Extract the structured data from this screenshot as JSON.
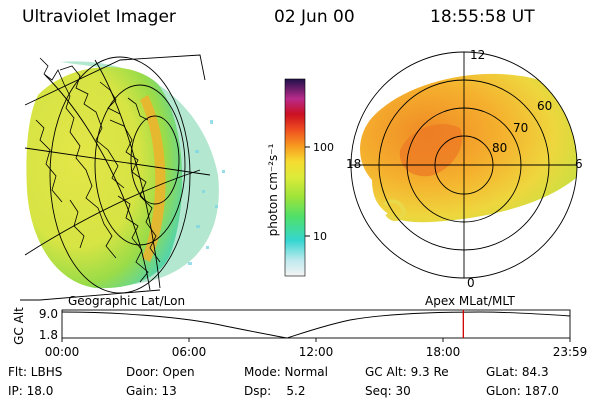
{
  "header": {
    "title": "Ultraviolet Imager",
    "date": "02 Jun 00",
    "time": "18:55:58 UT"
  },
  "colorbar": {
    "label": "photon cm⁻²s⁻¹",
    "ticks": [
      "100",
      "10"
    ]
  },
  "polar": {
    "hour_labels": [
      "12",
      "18",
      "6",
      "0"
    ],
    "lat_labels": [
      "60",
      "70",
      "80"
    ]
  },
  "panel_labels": {
    "left": "Geographic Lat/Lon",
    "right": "Apex MLat/MLT"
  },
  "timeline": {
    "ylabel": "GC Alt",
    "y_ticks": [
      "9.0",
      "1.8"
    ],
    "x_ticks": [
      "00:00",
      "06:00",
      "12:00",
      "18:00",
      "23:59"
    ],
    "current_time_fraction": 0.79,
    "marker_color": "#d00000"
  },
  "info": {
    "flt": "Flt: LBHS",
    "ip": "IP: 18.0",
    "door": "Door: Open",
    "gain": "Gain: 13",
    "mode": "Mode: Normal",
    "dsp": "Dsp:    5.2",
    "gcalt": "GC Alt: 9.3 Re",
    "seq": "Seq: 30",
    "glat": "GLat: 84.3",
    "glon": "GLon: 187.0"
  }
}
